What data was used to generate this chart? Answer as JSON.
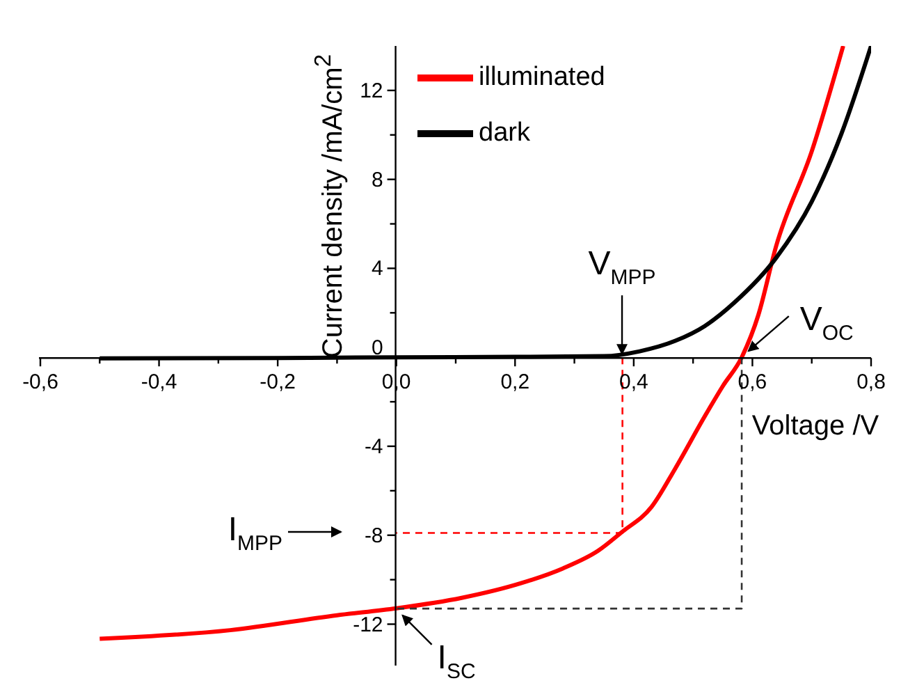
{
  "chart_data": {
    "type": "line",
    "xlabel": "Voltage /V",
    "ylabel": "Current density /mA/cm$^{2}$",
    "xlim": [
      -0.6,
      0.8
    ],
    "ylim": [
      -13.8,
      14
    ],
    "xticks": [
      {
        "value": -0.6,
        "label": "-0,6"
      },
      {
        "value": -0.5,
        "label": null
      },
      {
        "value": -0.4,
        "label": "-0,4"
      },
      {
        "value": -0.3,
        "label": null
      },
      {
        "value": -0.2,
        "label": "-0,2"
      },
      {
        "value": -0.1,
        "label": null
      },
      {
        "value": 0,
        "label": "0,0"
      },
      {
        "value": 0.1,
        "label": null
      },
      {
        "value": 0.2,
        "label": "0,2"
      },
      {
        "value": 0.3,
        "label": null
      },
      {
        "value": 0.4,
        "label": "0,4"
      },
      {
        "value": 0.5,
        "label": null
      },
      {
        "value": 0.6,
        "label": "0,6"
      },
      {
        "value": 0.7,
        "label": null
      },
      {
        "value": 0.8,
        "label": "0,8"
      }
    ],
    "yticks": [
      -12,
      {
        "value": -10,
        "label": null
      },
      -8,
      {
        "value": -6,
        "label": null
      },
      -4,
      {
        "value": -2,
        "label": null
      },
      0,
      {
        "value": 2,
        "label": null
      },
      4,
      {
        "value": 6,
        "label": null
      },
      8,
      {
        "value": 10,
        "label": null
      },
      12
    ],
    "legend": "top",
    "grid": false,
    "marker": "none",
    "series": [
      {
        "name": "illuminated",
        "color": "#ff0000",
        "x": [
          -0.5,
          -0.28,
          -0.1,
          0,
          0.11,
          0.21,
          0.28,
          0.34,
          0.38,
          0.43,
          0.47,
          0.52,
          0.55,
          0.582,
          0.61,
          0.64,
          0.7,
          0.753
        ],
        "values": [
          -12.66,
          -12.27,
          -11.6,
          -11.29,
          -10.82,
          -10.16,
          -9.5,
          -8.7,
          -7.86,
          -6.73,
          -5.0,
          -2.64,
          -1.3,
          0,
          1.9,
          5.0,
          9.26,
          14.0
        ]
      },
      {
        "name": "dark",
        "color": "#000000",
        "x": [
          -0.5,
          -0.2,
          0,
          0.2,
          0.35,
          0.41,
          0.47,
          0.52,
          0.57,
          0.64,
          0.7,
          0.75,
          0.8
        ],
        "values": [
          -0.05,
          -0.03,
          0,
          0.02,
          0.05,
          0.27,
          0.74,
          1.41,
          2.47,
          4.47,
          7.0,
          10.05,
          14.0
        ]
      },
      {
        "type": "line",
        "line_style": "dashed",
        "color": "#ff0000",
        "x": [
          0.381,
          0.381,
          0
        ],
        "values": [
          0,
          -7.9,
          -7.9
        ]
      },
      {
        "type": "line",
        "line_style": "dashed",
        "color": "#333333",
        "x": [
          0.582,
          0.582,
          0
        ],
        "values": [
          0,
          -11.3,
          -11.3
        ]
      }
    ],
    "annotations": [
      {
        "text": "V$_{MPP}$",
        "x": 0.381,
        "y": 0
      },
      {
        "text": "V$_{OC}$",
        "x": 0.582,
        "y": 0
      },
      "I$_{MPP}$",
      {
        "text": "I$_{SC}$",
        "x": 0,
        "y": -11.3
      }
    ]
  }
}
